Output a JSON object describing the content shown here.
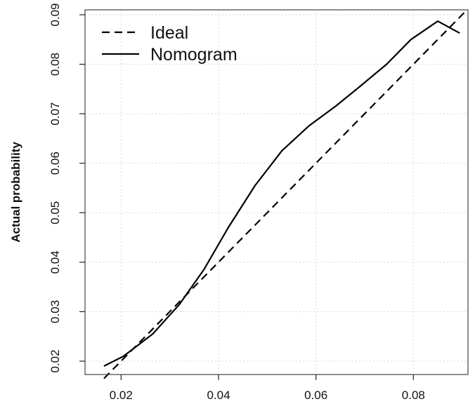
{
  "chart_data": {
    "type": "line",
    "title": "",
    "xlabel": "",
    "ylabel": "Actual probability",
    "xlim": [
      0.0126,
      0.0912
    ],
    "ylim": [
      0.0173,
      0.091
    ],
    "xticks": [
      "0.02",
      "0.04",
      "0.06",
      "0.08"
    ],
    "yticks": [
      "0.02",
      "0.03",
      "0.04",
      "0.05",
      "0.06",
      "0.07",
      "0.08",
      "0.09"
    ],
    "grid": true,
    "legend_position": "top-left",
    "series": [
      {
        "name": "Ideal",
        "style": "dashed",
        "color": "#000000",
        "x": [
          0.0165,
          0.091
        ],
        "y": [
          0.0165,
          0.091
        ]
      },
      {
        "name": "Nomogram",
        "style": "solid",
        "color": "#000000",
        "x": [
          0.0165,
          0.0205,
          0.0265,
          0.032,
          0.037,
          0.042,
          0.0475,
          0.053,
          0.0585,
          0.064,
          0.069,
          0.0745,
          0.0795,
          0.085,
          0.0895
        ],
        "y": [
          0.019,
          0.021,
          0.0255,
          0.0315,
          0.0385,
          0.047,
          0.0555,
          0.0625,
          0.0675,
          0.0715,
          0.0755,
          0.08,
          0.085,
          0.0887,
          0.0863
        ]
      }
    ]
  },
  "grid_color": "#d9d9d9",
  "box_color": "#444444"
}
